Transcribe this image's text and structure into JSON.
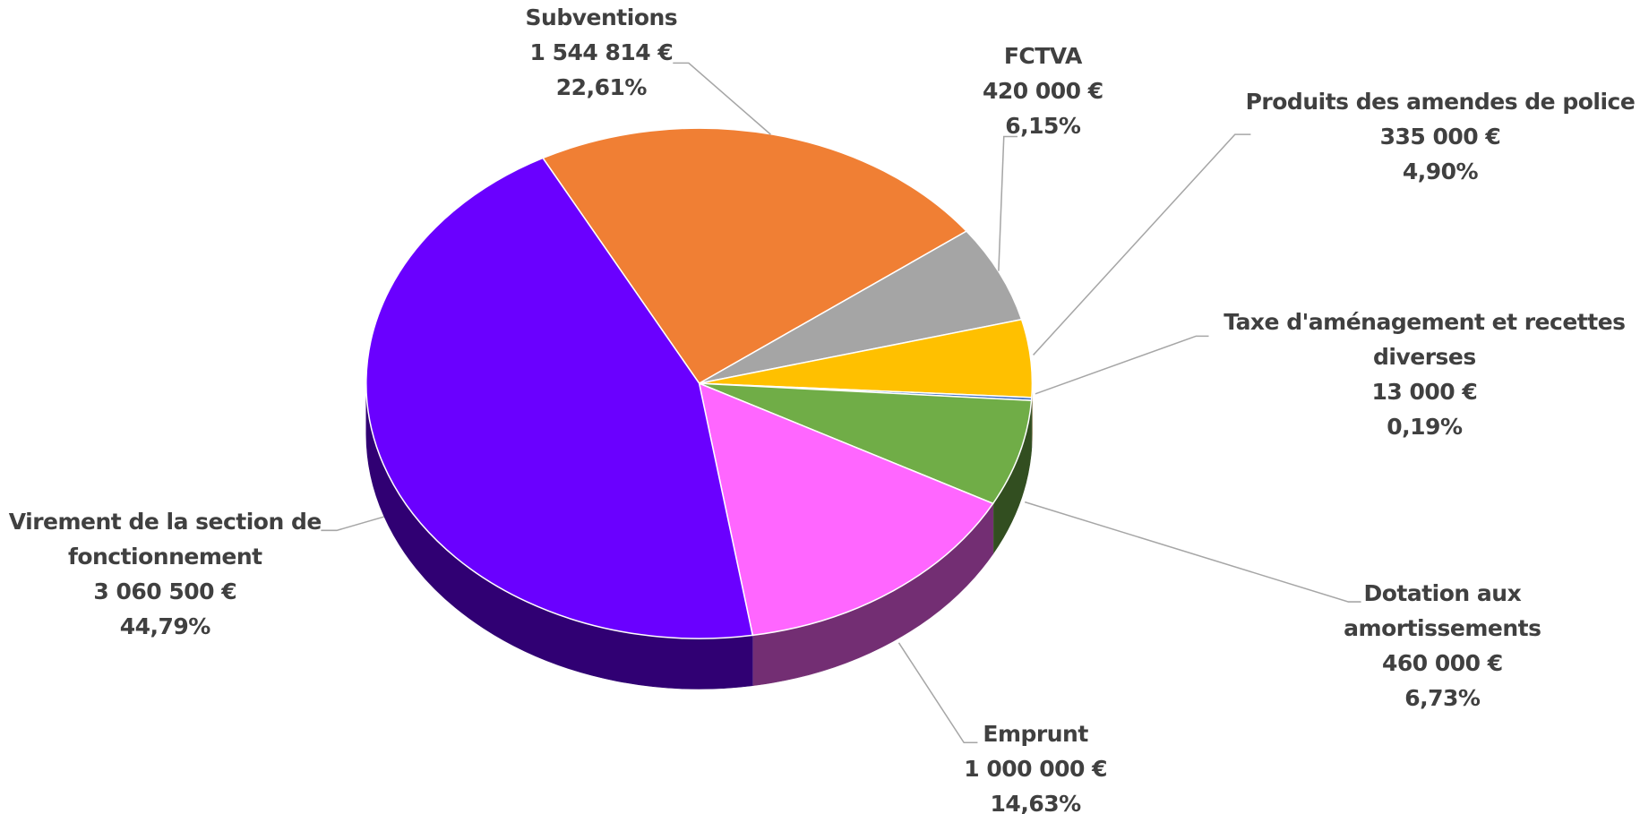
{
  "chart_data": {
    "type": "pie",
    "categories": [
      "Subventions",
      "FCTVA",
      "Produits des amendes de police",
      "Taxe d'aménagement et recettes diverses",
      "Dotation aux amortissements",
      "Emprunt",
      "Virement de la section de fonctionnement"
    ],
    "values": [
      1544814,
      420000,
      335000,
      13000,
      460000,
      1000000,
      3060500
    ],
    "value_labels": [
      "1 544 814 €",
      "420 000 €",
      "335 000 €",
      "13 000 €",
      "460 000 €",
      "1 000 000 €",
      "3 060 500 €"
    ],
    "percent_labels": [
      "22,61%",
      "6,15%",
      "4,90%",
      "0,19%",
      "6,73%",
      "14,63%",
      "44,79%"
    ],
    "colors": [
      "#f07f34",
      "#a5a5a5",
      "#ffc000",
      "#4472c4",
      "#70ad47",
      "#ff66ff",
      "#6a00ff"
    ]
  }
}
